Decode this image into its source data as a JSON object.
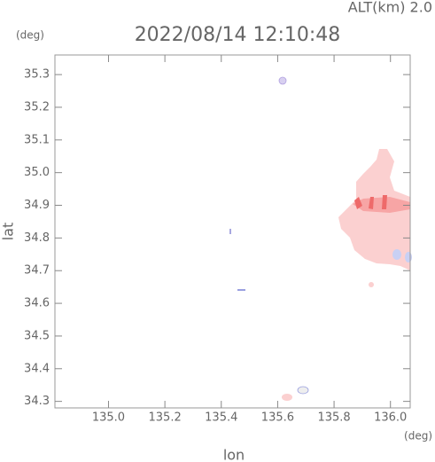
{
  "chart_data": {
    "type": "map",
    "title": "2022/08/14 12:10:48",
    "subtitle": "ALT(km) 2.0",
    "x_label": "lon",
    "y_label": "lat",
    "x_unit": "(deg)",
    "y_unit": "(deg)",
    "xlim": [
      134.81,
      136.07
    ],
    "ylim": [
      34.28,
      35.36
    ],
    "xticks": [
      {
        "value": 135,
        "label": "135.0"
      },
      135.2,
      135.4,
      135.6,
      135.8,
      {
        "value": 136,
        "label": "136.0"
      }
    ],
    "yticks": [
      34.3,
      34.4,
      34.5,
      34.6,
      34.7,
      34.8,
      34.9,
      {
        "value": 35,
        "label": "35.0"
      },
      35.1,
      35.2,
      35.3
    ]
  }
}
